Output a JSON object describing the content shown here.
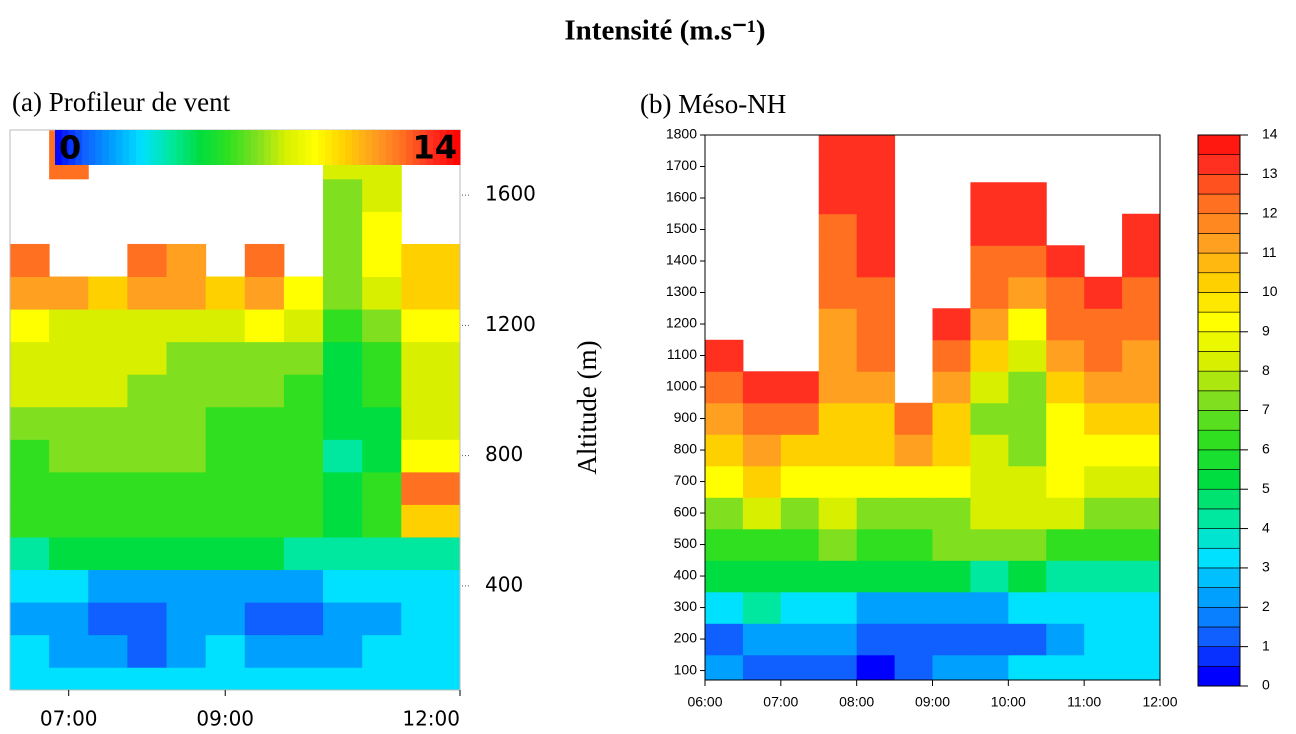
{
  "title": "Intensité (m.s⁻¹)",
  "chart_data": [
    {
      "type": "heatmap",
      "title": "(a) Profileur de vent",
      "x": [
        6.5,
        7,
        7.5,
        8,
        8.5,
        9,
        9.5,
        10,
        10.5,
        11,
        11.5
      ],
      "y": [
        100,
        200,
        300,
        400,
        500,
        600,
        700,
        800,
        900,
        1000,
        1100,
        1200,
        1300,
        1400,
        1500,
        1600,
        1700
      ],
      "z": [
        [
          3,
          3,
          3,
          3,
          3,
          3,
          3,
          3,
          3,
          3,
          3
        ],
        [
          3,
          2,
          2,
          1,
          2,
          3,
          2,
          2,
          2,
          3,
          3
        ],
        [
          2,
          2,
          1,
          1,
          2,
          2,
          1,
          1,
          2,
          2,
          3
        ],
        [
          3,
          3,
          2,
          2,
          2,
          2,
          2,
          2,
          3,
          3,
          3
        ],
        [
          4,
          5,
          5,
          5,
          5,
          5,
          5,
          4,
          4,
          4,
          4
        ],
        [
          6,
          6,
          6,
          6,
          6,
          6,
          6,
          6,
          5,
          6,
          10
        ],
        [
          6,
          6,
          6,
          6,
          6,
          6,
          6,
          6,
          5,
          6,
          12
        ],
        [
          6,
          7,
          7,
          7,
          7,
          6,
          6,
          6,
          4,
          5,
          9
        ],
        [
          7,
          7,
          7,
          7,
          7,
          6,
          6,
          6,
          5,
          5,
          8
        ],
        [
          8,
          8,
          8,
          7,
          7,
          7,
          7,
          6,
          5,
          6,
          8
        ],
        [
          8,
          8,
          8,
          8,
          7,
          7,
          7,
          7,
          5,
          6,
          8
        ],
        [
          9,
          8,
          8,
          8,
          8,
          8,
          9,
          8,
          6,
          7,
          9
        ],
        [
          11,
          11,
          10,
          11,
          11,
          10,
          11,
          9,
          7,
          8,
          10
        ],
        [
          12,
          null,
          null,
          12,
          11,
          null,
          12,
          null,
          7,
          9,
          10
        ],
        [
          null,
          null,
          null,
          null,
          null,
          null,
          null,
          null,
          7,
          9,
          null
        ],
        [
          null,
          null,
          null,
          null,
          null,
          null,
          null,
          null,
          7,
          8,
          null
        ],
        [
          null,
          12,
          null,
          null,
          null,
          null,
          null,
          null,
          8,
          8,
          null
        ]
      ],
      "xlim": [
        6.25,
        12
      ],
      "ylim": [
        80,
        1800
      ],
      "xticks": [
        {
          "value": 7,
          "label": "07:00"
        },
        {
          "value": 9,
          "label": "09:00"
        },
        {
          "value": 12,
          "label": "12:00"
        }
      ],
      "yticks": [
        400,
        800,
        1200,
        1600
      ],
      "clim": [
        0,
        14
      ],
      "cticks": [
        0,
        14
      ],
      "colors": [
        "#0000ff",
        "#1060ff",
        "#00a0ff",
        "#00e0ff",
        "#00e8a0",
        "#00dd40",
        "#30e020",
        "#80e020",
        "#d8f000",
        "#ffff00",
        "#ffd000",
        "#ffa020",
        "#ff7020",
        "#ff3020",
        "#ff0000"
      ]
    },
    {
      "type": "heatmap",
      "title": "(b) Méso-NH",
      "ylabel": "Altitude (m)",
      "x": [
        6.25,
        6.75,
        7.25,
        7.75,
        8.25,
        8.75,
        9.25,
        9.75,
        10.25,
        10.75,
        11.25,
        11.75
      ],
      "y": [
        100,
        200,
        300,
        400,
        500,
        600,
        700,
        800,
        900,
        1000,
        1100,
        1200,
        1300,
        1400,
        1500,
        1600,
        1700,
        1800
      ],
      "z": [
        [
          2,
          1,
          1,
          1,
          0,
          1,
          2,
          2,
          3,
          3,
          3,
          3
        ],
        [
          1,
          2,
          2,
          2,
          1,
          1,
          1,
          1,
          1,
          2,
          3,
          3
        ],
        [
          3,
          4,
          3,
          3,
          2,
          2,
          2,
          2,
          3,
          3,
          3,
          3
        ],
        [
          5,
          5,
          5,
          5,
          5,
          5,
          5,
          4,
          5,
          4,
          4,
          4
        ],
        [
          6,
          6,
          6,
          7,
          6,
          6,
          7,
          7,
          7,
          6,
          6,
          6
        ],
        [
          7,
          8,
          7,
          8,
          7,
          7,
          7,
          8,
          8,
          8,
          7,
          7
        ],
        [
          9,
          10,
          9,
          9,
          9,
          9,
          9,
          8,
          8,
          9,
          8,
          8
        ],
        [
          10,
          11,
          10,
          10,
          10,
          11,
          10,
          8,
          7,
          9,
          9,
          9
        ],
        [
          11,
          12,
          12,
          10,
          10,
          12,
          10,
          7,
          7,
          9,
          10,
          10
        ],
        [
          12,
          13,
          13,
          11,
          11,
          null,
          11,
          8,
          7,
          10,
          11,
          11
        ],
        [
          13,
          null,
          null,
          11,
          12,
          null,
          12,
          10,
          8,
          11,
          12,
          11
        ],
        [
          null,
          null,
          null,
          11,
          12,
          null,
          13,
          11,
          9,
          12,
          12,
          12
        ],
        [
          null,
          null,
          null,
          12,
          12,
          null,
          null,
          12,
          11,
          12,
          13,
          12
        ],
        [
          null,
          null,
          null,
          12,
          13,
          null,
          null,
          12,
          12,
          13,
          null,
          13
        ],
        [
          null,
          null,
          null,
          12,
          13,
          null,
          null,
          13,
          13,
          null,
          null,
          13
        ],
        [
          null,
          null,
          null,
          13,
          13,
          null,
          null,
          13,
          13,
          null,
          null,
          null
        ],
        [
          null,
          null,
          null,
          13,
          13,
          null,
          null,
          null,
          null,
          null,
          null,
          null
        ],
        [
          null,
          null,
          null,
          13,
          13,
          null,
          null,
          null,
          null,
          null,
          null,
          null
        ]
      ],
      "xlim": [
        6,
        12
      ],
      "ylim": [
        70,
        1800
      ],
      "xticks": [
        {
          "value": 6,
          "label": "06:00"
        },
        {
          "value": 7,
          "label": "07:00"
        },
        {
          "value": 8,
          "label": "08:00"
        },
        {
          "value": 9,
          "label": "09:00"
        },
        {
          "value": 10,
          "label": "10:00"
        },
        {
          "value": 11,
          "label": "11:00"
        },
        {
          "value": 12,
          "label": "12:00"
        }
      ],
      "yticks": [
        100,
        200,
        300,
        400,
        500,
        600,
        700,
        800,
        900,
        1000,
        1100,
        1200,
        1300,
        1400,
        1500,
        1600,
        1700,
        1800
      ],
      "clim": [
        0,
        14
      ],
      "cticks": [
        0,
        1,
        2,
        3,
        4,
        5,
        6,
        7,
        8,
        9,
        10,
        11,
        12,
        13,
        14
      ],
      "colors": [
        "#0000ff",
        "#1060ff",
        "#00a0ff",
        "#00e0ff",
        "#00e8a0",
        "#00dd40",
        "#30e020",
        "#80e020",
        "#d8f000",
        "#ffff00",
        "#ffd000",
        "#ffa020",
        "#ff7020",
        "#ff3020",
        "#ff0000"
      ]
    }
  ]
}
